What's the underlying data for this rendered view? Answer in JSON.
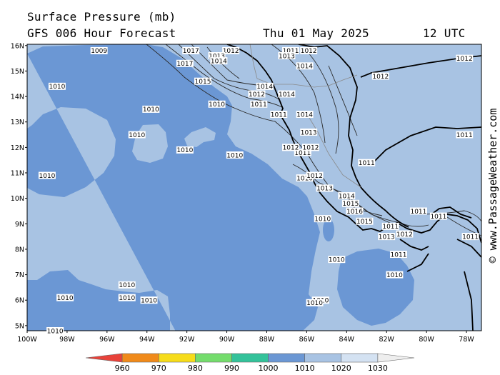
{
  "header": {
    "title": "Surface Pressure (mb)",
    "model": "GFS 006 Hour Forecast",
    "date": "Thu 01 May 2025",
    "time": "12 UTC"
  },
  "watermark": "© www.PassageWeather.com",
  "axes": {
    "lat_labels": [
      "16N",
      "15N",
      "14N",
      "13N",
      "12N",
      "11N",
      "10N",
      "9N",
      "8N",
      "7N",
      "6N",
      "5N"
    ],
    "lon_labels": [
      "100W",
      "98W",
      "96W",
      "94W",
      "92W",
      "90W",
      "88W",
      "86W",
      "84W",
      "82W",
      "80W",
      "78W"
    ]
  },
  "colorbar": {
    "ticks": [
      "960",
      "970",
      "980",
      "990",
      "1000",
      "1010",
      "1020",
      "1030"
    ],
    "colors": [
      "#e8423a",
      "#f08a1a",
      "#f6dc1a",
      "#74dc6c",
      "#33c29a",
      "#6b97d4",
      "#a8c3e3",
      "#d4e2f2",
      "#eeeeee"
    ]
  },
  "isobar_labels": [
    {
      "text": "1010",
      "lon": -98.5,
      "lat": 14.4
    },
    {
      "text": "1010",
      "lon": -94.5,
      "lat": 12.5
    },
    {
      "text": "1010",
      "lon": -93.8,
      "lat": 13.5
    },
    {
      "text": "1010",
      "lon": -92.1,
      "lat": 11.9
    },
    {
      "text": "1010",
      "lon": -90.5,
      "lat": 13.7
    },
    {
      "text": "1010",
      "lon": -89.6,
      "lat": 11.7
    },
    {
      "text": "1010",
      "lon": -99.0,
      "lat": 10.9
    },
    {
      "text": "1010",
      "lon": -86.1,
      "lat": 10.8
    },
    {
      "text": "1010",
      "lon": -85.2,
      "lat": 9.2
    },
    {
      "text": "1010",
      "lon": -84.5,
      "lat": 7.6
    },
    {
      "text": "1010",
      "lon": -81.6,
      "lat": 7.0
    },
    {
      "text": "1010",
      "lon": -95.0,
      "lat": 6.6
    },
    {
      "text": "1010",
      "lon": -98.1,
      "lat": 6.1
    },
    {
      "text": "1010",
      "lon": -95.0,
      "lat": 6.1
    },
    {
      "text": "1010",
      "lon": -93.9,
      "lat": 6.0
    },
    {
      "text": "1010",
      "lon": -98.6,
      "lat": 4.8
    },
    {
      "text": "1010",
      "lon": -85.3,
      "lat": 6.0
    },
    {
      "text": "1010",
      "lon": -85.6,
      "lat": 5.9
    },
    {
      "text": "1009",
      "lon": -96.4,
      "lat": 15.8
    },
    {
      "text": "1011",
      "lon": -86.8,
      "lat": 15.8
    },
    {
      "text": "1011",
      "lon": -88.4,
      "lat": 13.7
    },
    {
      "text": "1011",
      "lon": -87.4,
      "lat": 13.3
    },
    {
      "text": "1011",
      "lon": -86.2,
      "lat": 11.8
    },
    {
      "text": "1011",
      "lon": -83.0,
      "lat": 11.4
    },
    {
      "text": "1011",
      "lon": -78.1,
      "lat": 12.5
    },
    {
      "text": "1011",
      "lon": -80.4,
      "lat": 9.5
    },
    {
      "text": "1011",
      "lon": -79.4,
      "lat": 9.3
    },
    {
      "text": "1011",
      "lon": -81.8,
      "lat": 8.9
    },
    {
      "text": "1011",
      "lon": -81.4,
      "lat": 7.8
    },
    {
      "text": "1011",
      "lon": -77.8,
      "lat": 8.5
    },
    {
      "text": "1012",
      "lon": -89.8,
      "lat": 15.8
    },
    {
      "text": "1012",
      "lon": -85.9,
      "lat": 15.8
    },
    {
      "text": "1012",
      "lon": -82.3,
      "lat": 14.8
    },
    {
      "text": "1012",
      "lon": -78.1,
      "lat": 15.5
    },
    {
      "text": "1012",
      "lon": -88.5,
      "lat": 14.1
    },
    {
      "text": "1012",
      "lon": -86.8,
      "lat": 12.0
    },
    {
      "text": "1012",
      "lon": -85.8,
      "lat": 12.0
    },
    {
      "text": "1012",
      "lon": -85.6,
      "lat": 10.9
    },
    {
      "text": "1012",
      "lon": -81.1,
      "lat": 8.6
    },
    {
      "text": "1013",
      "lon": -87.0,
      "lat": 15.6
    },
    {
      "text": "1013",
      "lon": -90.5,
      "lat": 15.6
    },
    {
      "text": "1013",
      "lon": -85.9,
      "lat": 12.6
    },
    {
      "text": "1013",
      "lon": -85.1,
      "lat": 10.4
    },
    {
      "text": "1013",
      "lon": -82.0,
      "lat": 8.5
    },
    {
      "text": "1014",
      "lon": -90.4,
      "lat": 15.4
    },
    {
      "text": "1014",
      "lon": -86.1,
      "lat": 15.2
    },
    {
      "text": "1014",
      "lon": -88.1,
      "lat": 14.4
    },
    {
      "text": "1014",
      "lon": -87.0,
      "lat": 14.1
    },
    {
      "text": "1014",
      "lon": -86.1,
      "lat": 13.3
    },
    {
      "text": "1014",
      "lon": -84.0,
      "lat": 10.1
    },
    {
      "text": "1015",
      "lon": -91.2,
      "lat": 14.6
    },
    {
      "text": "1015",
      "lon": -83.8,
      "lat": 9.8
    },
    {
      "text": "1015",
      "lon": -83.1,
      "lat": 9.1
    },
    {
      "text": "1016",
      "lon": -83.6,
      "lat": 9.5
    },
    {
      "text": "1017",
      "lon": -91.8,
      "lat": 15.8
    },
    {
      "text": "1017",
      "lon": -92.1,
      "lat": 15.3
    }
  ]
}
